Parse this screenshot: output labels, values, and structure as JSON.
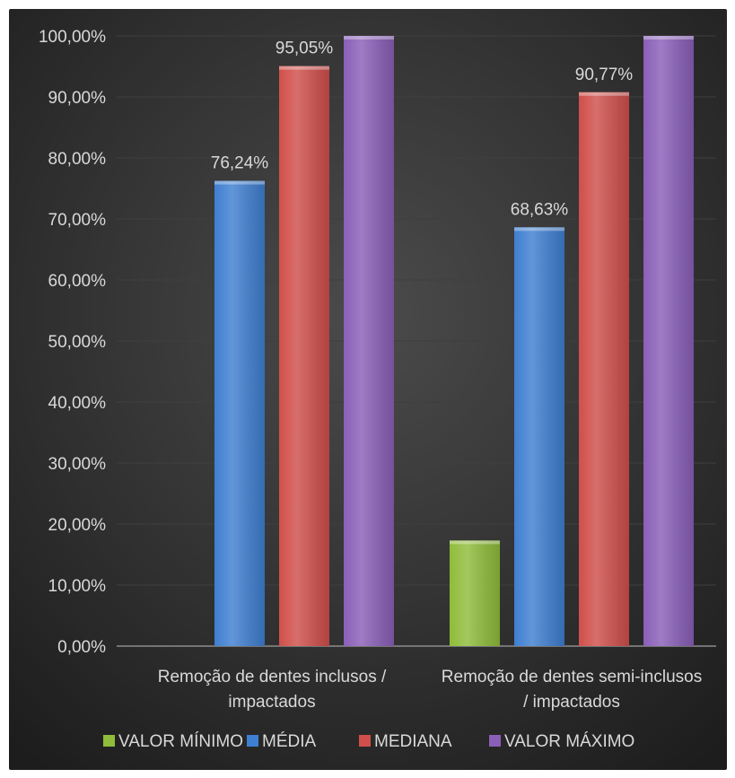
{
  "chart_data": {
    "type": "bar",
    "categories": [
      [
        "Remoção de dentes inclusos /",
        "impactados"
      ],
      [
        "Remoção de dentes semi-inclusos",
        "/ impactados"
      ]
    ],
    "series": [
      {
        "name": "VALOR MÍNIMO",
        "values": [
          0,
          17.3
        ],
        "color": "#8fbc3a",
        "labels": [
          null,
          null
        ]
      },
      {
        "name": "MÉDIA",
        "values": [
          76.24,
          68.63
        ],
        "color": "#3f7fd1",
        "labels": [
          "76,24%",
          "68,63%"
        ]
      },
      {
        "name": "MEDIANA",
        "values": [
          95.05,
          90.77
        ],
        "color": "#d04f4b",
        "labels": [
          "95,05%",
          "90,77%"
        ]
      },
      {
        "name": "VALOR MÁXIMO",
        "values": [
          100,
          100
        ],
        "color": "#8a5fb8",
        "labels": [
          null,
          null
        ]
      }
    ],
    "yticks": [
      "0,00%",
      "10,00%",
      "20,00%",
      "30,00%",
      "40,00%",
      "50,00%",
      "60,00%",
      "70,00%",
      "80,00%",
      "90,00%",
      "100,00%"
    ],
    "ylim": [
      0,
      100
    ],
    "grid": true,
    "legend": "bottom",
    "title": "",
    "xlabel": "",
    "ylabel": ""
  }
}
